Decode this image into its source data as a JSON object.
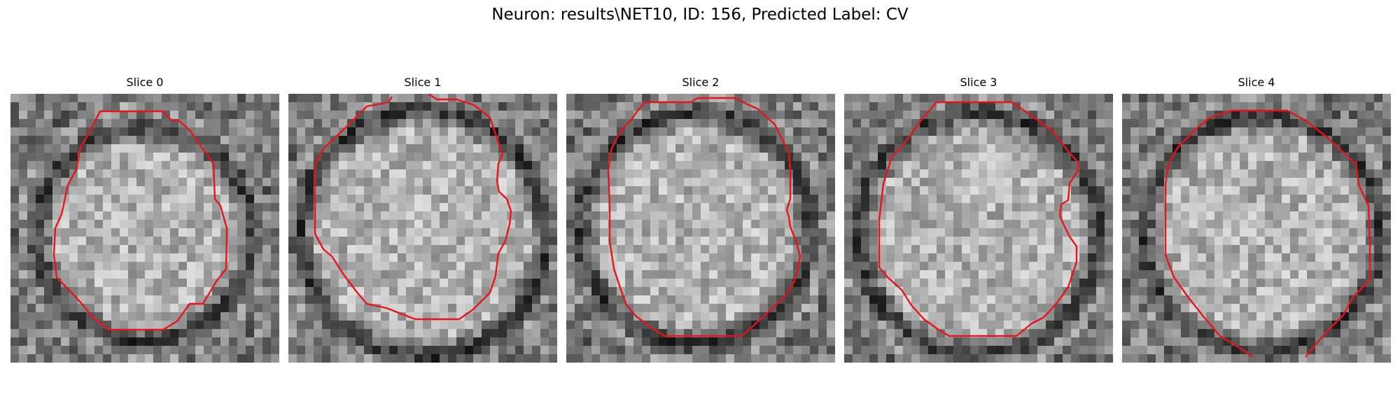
{
  "figure": {
    "suptitle": "Neuron: results\\NET10, ID: 156, Predicted Label: CV"
  },
  "contour_color": "#e8141c",
  "panels": [
    {
      "title": "Slice 0"
    },
    {
      "title": "Slice 1"
    },
    {
      "title": "Slice 2"
    },
    {
      "title": "Slice 3"
    },
    {
      "title": "Slice 4"
    }
  ]
}
